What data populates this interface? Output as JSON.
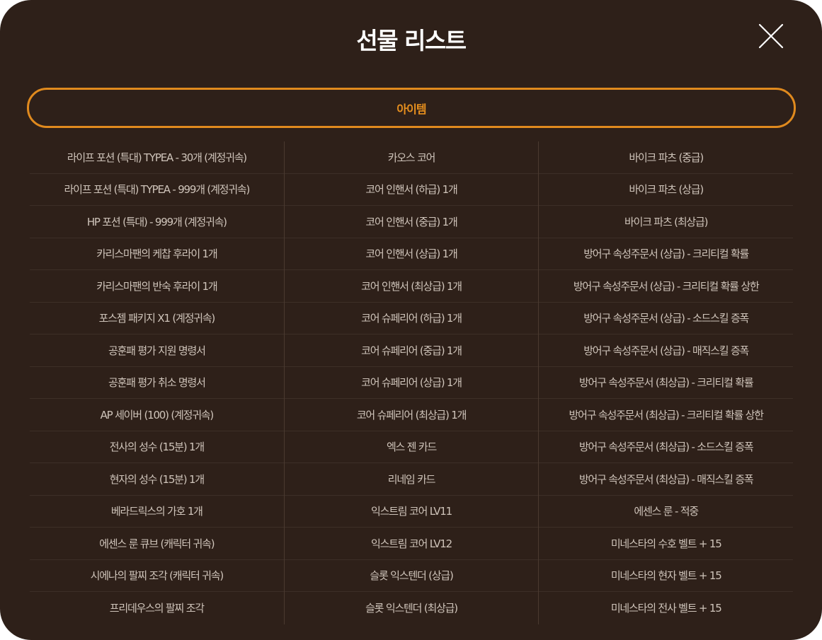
{
  "modal": {
    "title": "선물 리스트",
    "close_icon": "close-icon",
    "tab_label": "아이템",
    "accent_color": "#e08a1e",
    "background_color": "#2e2019"
  },
  "items": {
    "col1": [
      "라이프 포션 (특대) TYPEA - 30개 (계정귀속)",
      "라이프 포션 (특대) TYPEA - 999개 (계정귀속)",
      "HP 포션 (특대) - 999개 (계정귀속)",
      "카리스마팬의 케찹 후라이 1개",
      "카리스마팬의 반숙 후라이 1개",
      "포스젬 패키지 X1 (계정귀속)",
      "공훈패 평가 지원 명령서",
      "공훈패 평가 취소 명령서",
      "AP 세이버 (100) (계정귀속)",
      "전사의 성수 (15분) 1개",
      "현자의 성수 (15분) 1개",
      "베라드릭스의 가호 1개",
      "에센스 룬 큐브 (캐릭터 귀속)",
      "시에나의 팔찌 조각 (캐릭터 귀속)",
      "프리데우스의 팔찌 조각"
    ],
    "col2": [
      "카오스 코어",
      "코어 인핸서 (하급) 1개",
      "코어 인핸서 (중급) 1개",
      "코어 인핸서 (상급) 1개",
      "코어 인핸서 (최상급) 1개",
      "코어 슈페리어 (하급) 1개",
      "코어 슈페리어 (중급) 1개",
      "코어 슈페리어 (상급) 1개",
      "코어 슈페리어 (최상급) 1개",
      "엑스 젠 카드",
      "리네임 카드",
      "익스트림 코어 LV11",
      "익스트림 코어 LV12",
      "슬롯 익스텐더 (상급)",
      "슬롯 익스텐더 (최상급)"
    ],
    "col3": [
      "바이크 파츠 (중급)",
      "바이크 파츠 (상급)",
      "바이크 파츠 (최상급)",
      "방어구 속성주문서 (상급) - 크리티컬 확률",
      "방어구 속성주문서 (상급) - 크리티컬 확률 상한",
      "방어구 속성주문서 (상급) - 소드스킬 증폭",
      "방어구 속성주문서 (상급) - 매직스킬 증폭",
      "방어구 속성주문서 (최상급) - 크리티컬 확률",
      "방어구 속성주문서 (최상급) - 크리티컬 확률 상한",
      "방어구 속성주문서 (최상급) - 소드스킬 증폭",
      "방어구 속성주문서 (최상급) - 매직스킬 증폭",
      "에센스 룬 - 적중",
      "미네스타의 수호 벨트 + 15",
      "미네스타의 현자 벨트 + 15",
      "미네스타의 전사 벨트 + 15"
    ]
  }
}
